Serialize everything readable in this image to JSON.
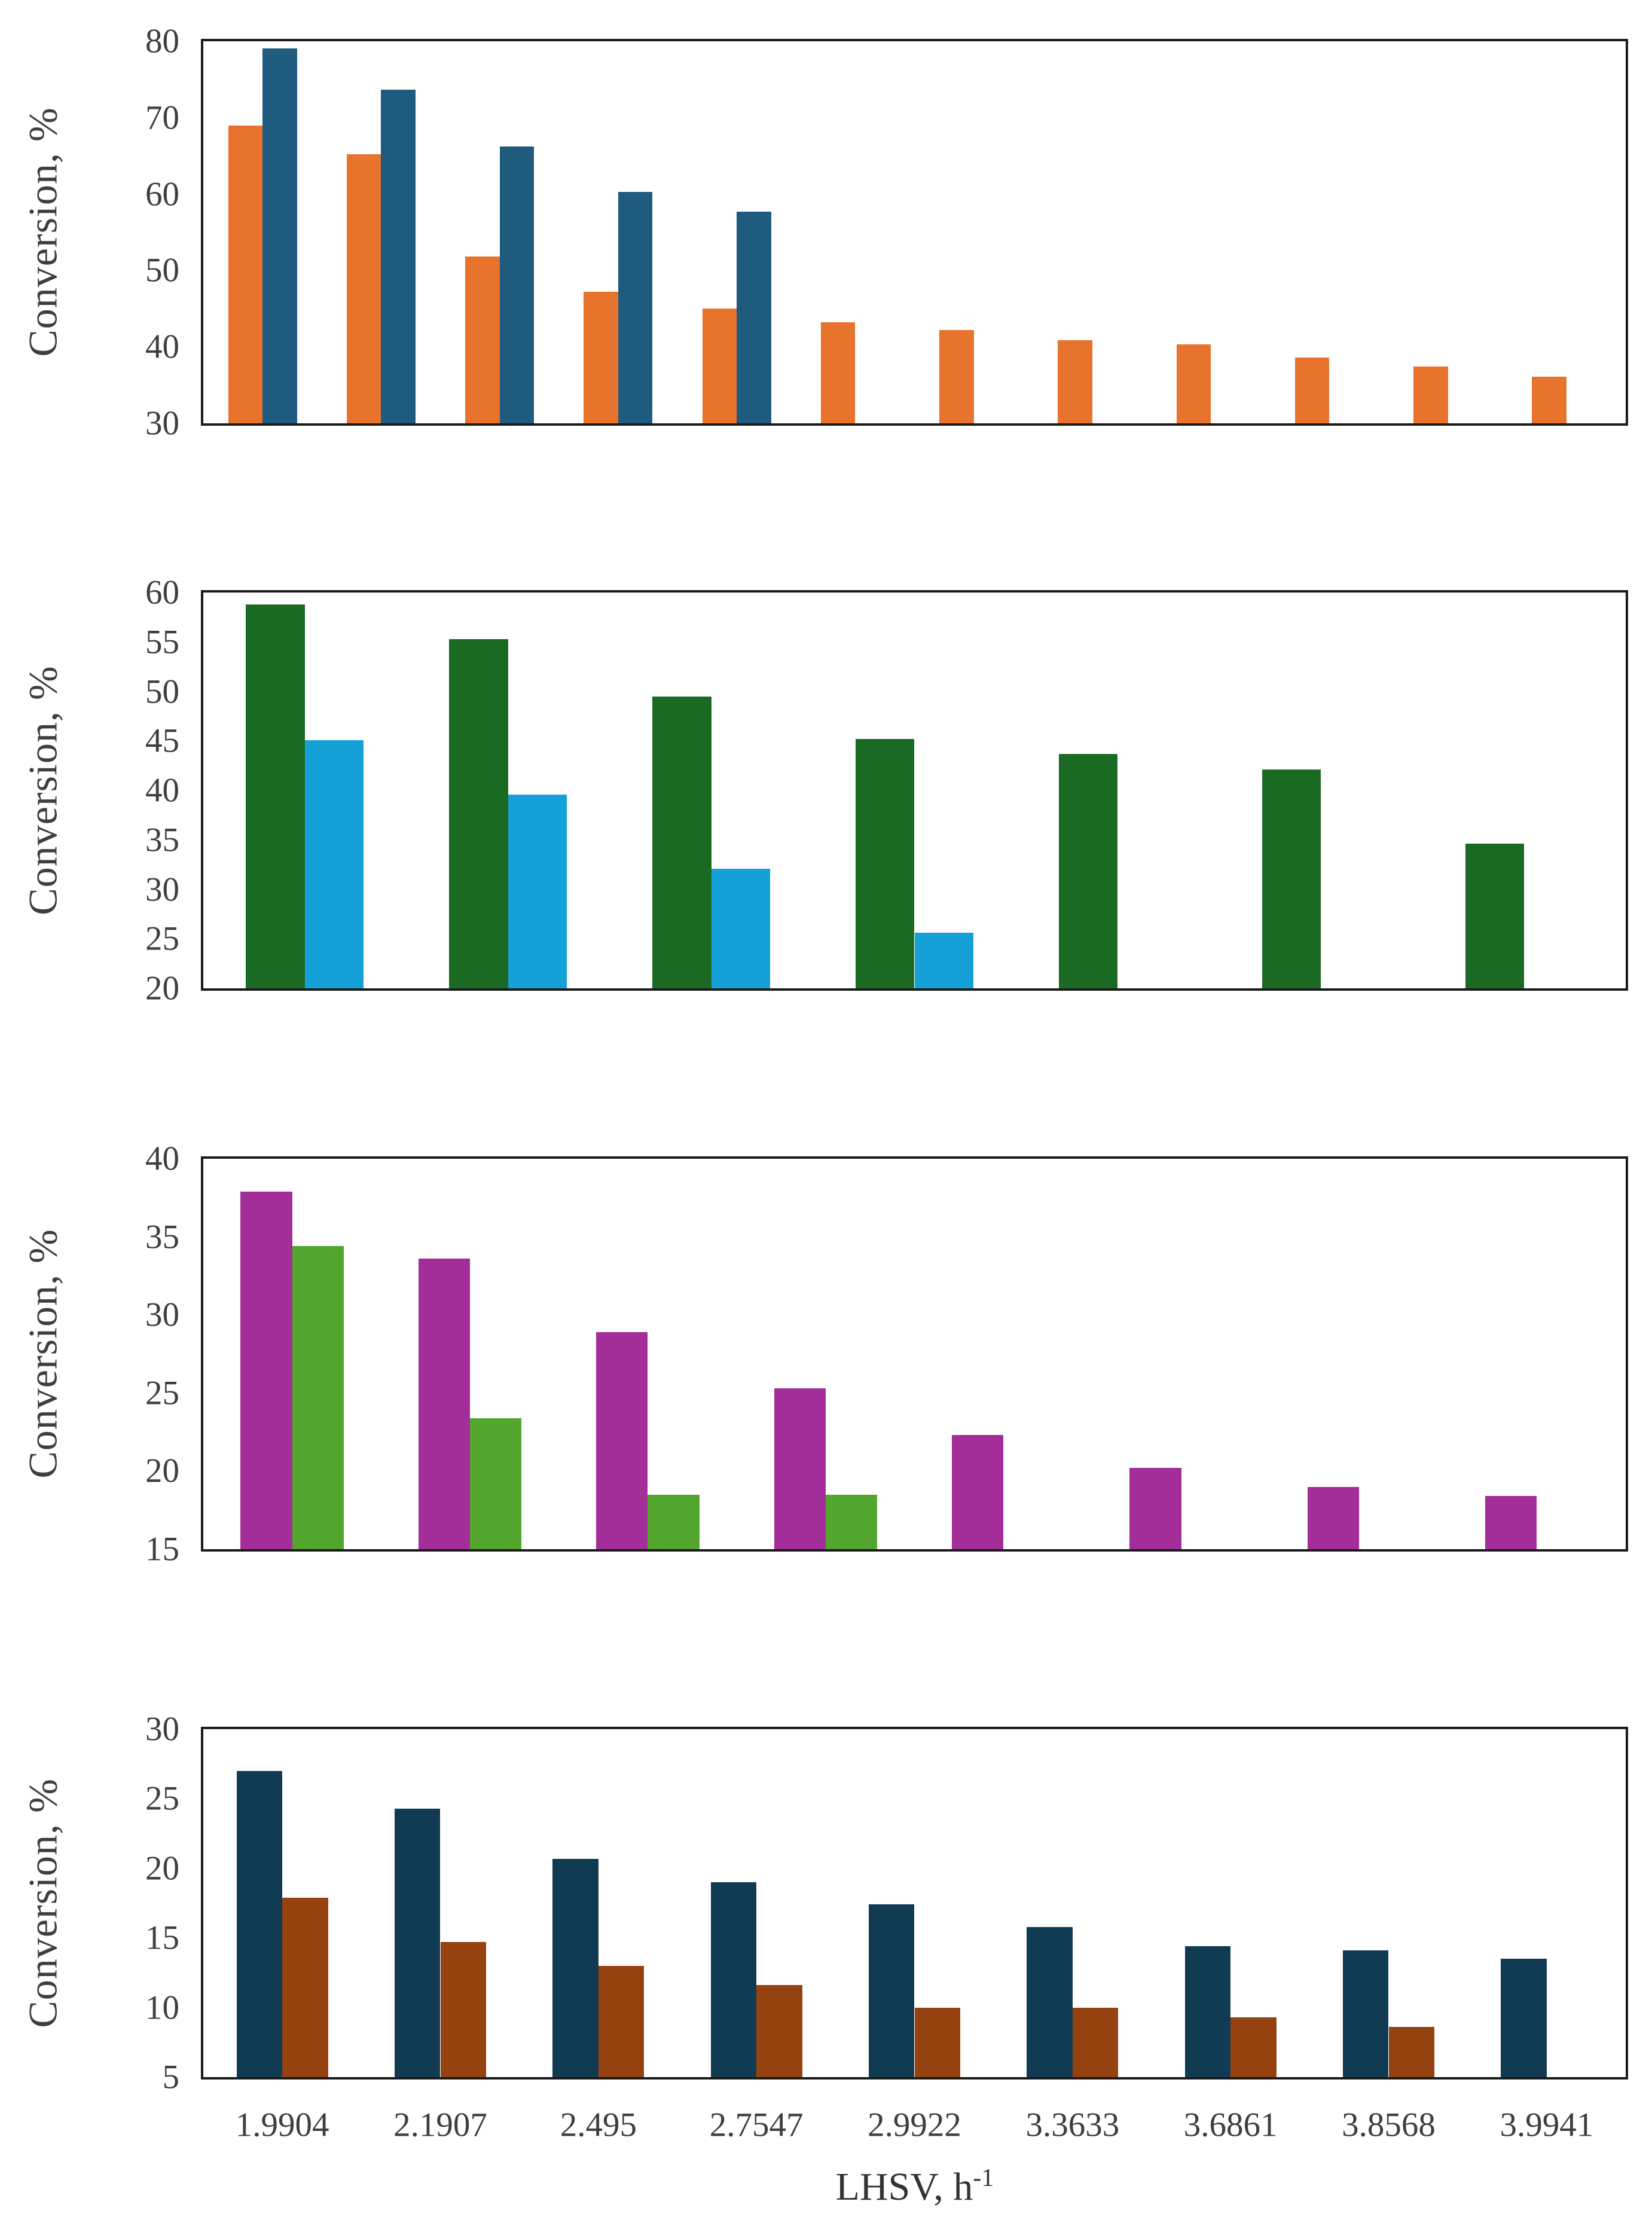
{
  "figure": {
    "background": "#ffffff",
    "frame_color": "#1a1a1a",
    "text_color": "#3e3e3e",
    "xlabel_main": "LHSV, h",
    "xlabel_sup": "-1",
    "x_tick_labels": [
      "1.9904",
      "2.1907",
      "2.495",
      "2.7547",
      "2.9922",
      "3.3633",
      "3.6861",
      "3.8568",
      "3.9941"
    ]
  },
  "chart_data": [
    {
      "type": "bar",
      "panel": 1,
      "title": "",
      "ylabel": "Conversion, %",
      "ylim": [
        30,
        80
      ],
      "yticks": [
        30,
        40,
        50,
        60,
        70,
        80
      ],
      "n_categories": 12,
      "grid": false,
      "legend": "none",
      "series": [
        {
          "name": "orange",
          "color": "#E8732D",
          "values": [
            69,
            65.2,
            51.8,
            47.2,
            45,
            43.2,
            42.2,
            40.9,
            40.3,
            38.6,
            37.4,
            36.1
          ]
        },
        {
          "name": "dark-blue",
          "color": "#1E5B7E",
          "values": [
            79.1,
            73.7,
            66.2,
            60.3,
            57.7,
            null,
            null,
            null,
            null,
            null,
            null,
            null
          ]
        }
      ]
    },
    {
      "type": "bar",
      "panel": 2,
      "title": "",
      "ylabel": "Conversion, %",
      "ylim": [
        20,
        60
      ],
      "yticks": [
        20,
        25,
        30,
        35,
        40,
        45,
        50,
        55,
        60
      ],
      "n_categories": 7,
      "grid": false,
      "legend": "none",
      "series": [
        {
          "name": "dark-green",
          "color": "#1B6A23",
          "values": [
            58.8,
            55.3,
            49.5,
            45.2,
            43.7,
            42.1,
            34.6
          ]
        },
        {
          "name": "light-blue",
          "color": "#16A0D8",
          "values": [
            45.1,
            39.6,
            32.1,
            25.6,
            null,
            null,
            null
          ]
        }
      ]
    },
    {
      "type": "bar",
      "panel": 3,
      "title": "",
      "ylabel": "Conversion, %",
      "ylim": [
        15,
        40
      ],
      "yticks": [
        15,
        20,
        25,
        30,
        35,
        40
      ],
      "n_categories": 8,
      "grid": false,
      "legend": "none",
      "series": [
        {
          "name": "magenta",
          "color": "#A32D99",
          "values": [
            37.9,
            33.6,
            28.9,
            25.3,
            22.3,
            20.2,
            19,
            18.4
          ]
        },
        {
          "name": "green",
          "color": "#52A62E",
          "values": [
            34.4,
            23.4,
            18.5,
            18.5,
            null,
            null,
            null,
            null
          ]
        }
      ]
    },
    {
      "type": "bar",
      "panel": 4,
      "title": "",
      "ylabel": "Conversion, %",
      "xlabel": "LHSV, h-1",
      "ylim": [
        5,
        30
      ],
      "yticks": [
        5,
        10,
        15,
        20,
        25,
        30
      ],
      "n_categories": 9,
      "categories": [
        "1.9904",
        "2.1907",
        "2.495",
        "2.7547",
        "2.9922",
        "3.3633",
        "3.6861",
        "3.8568",
        "3.9941"
      ],
      "grid": false,
      "legend": "none",
      "series": [
        {
          "name": "dark-navy",
          "color": "#113B52",
          "values": [
            27,
            24.3,
            20.7,
            19,
            17.4,
            15.8,
            14.4,
            14.1,
            13.5
          ]
        },
        {
          "name": "dark-orange-brown",
          "color": "#964110",
          "values": [
            17.9,
            14.7,
            13,
            11.6,
            10,
            10,
            9.3,
            8.6,
            null
          ]
        }
      ]
    }
  ]
}
